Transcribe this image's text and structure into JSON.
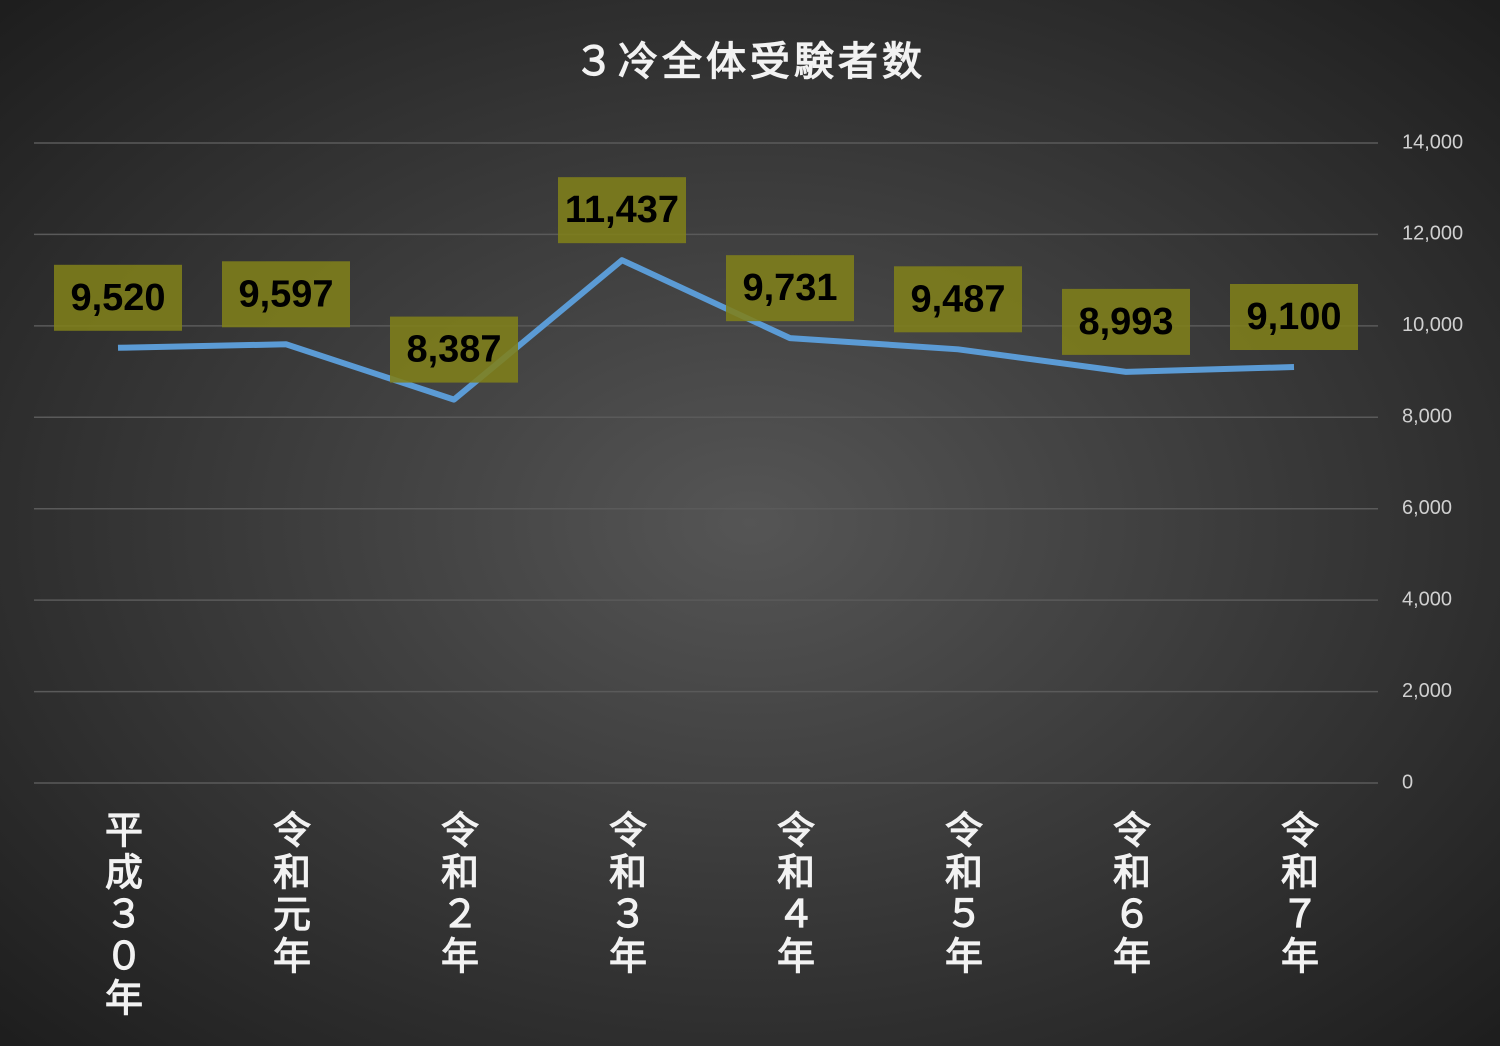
{
  "chart_data": {
    "type": "line",
    "title": "３冷全体受験者数",
    "categories": [
      "平成３０年",
      "令和元年",
      "令和２年",
      "令和３年",
      "令和４年",
      "令和５年",
      "令和６年",
      "令和７年"
    ],
    "values": [
      9520,
      9597,
      8387,
      11437,
      9731,
      9487,
      8993,
      9100
    ],
    "value_labels": [
      "9,520",
      "9,597",
      "8,387",
      "11,437",
      "9,731",
      "9,487",
      "8,993",
      "9,100"
    ],
    "color": "#5b9bd5",
    "label_box_color": "#80801a",
    "ylim": [
      0,
      14000
    ],
    "yticks": [
      0,
      {
        "value": 2000,
        "label": "2,000"
      },
      {
        "value": 4000,
        "label": "4,000"
      },
      {
        "value": 6000,
        "label": "6,000"
      },
      {
        "value": 8000,
        "label": "8,000"
      },
      {
        "value": 10000,
        "label": "10,000"
      },
      {
        "value": 12000,
        "label": "12,000"
      },
      {
        "value": 14000,
        "label": "14,000"
      }
    ],
    "y_axis_side": "right",
    "grid": true
  }
}
